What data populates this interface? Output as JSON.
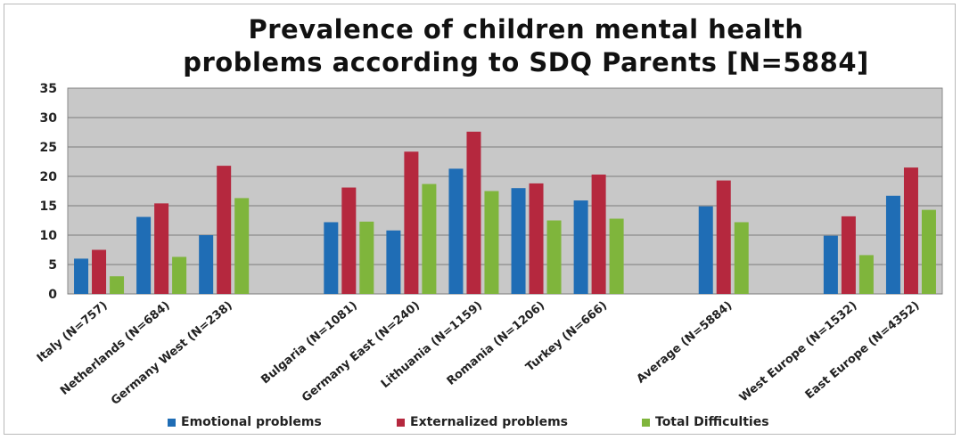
{
  "chart_data": {
    "type": "bar",
    "title_lines": [
      "Prevalence of children mental health",
      "problems according to SDQ  Parents [N=5884]"
    ],
    "categories": [
      "Italy (N=757)",
      "Netherlands (N=684)",
      "Germany West (N=238)",
      "",
      "Bulgaria (N=1081)",
      "Germany East (N=240)",
      "Lithuania (N=1159)",
      "Romania (N=1206)",
      "Turkey (N=666)",
      "",
      "Average (N=5884)",
      "",
      "West Europe (N=1532)",
      "East Europe (N=4352)"
    ],
    "series": [
      {
        "name": "Emotional problems",
        "color": "#1f6db5",
        "values": [
          6.0,
          13.1,
          10.0,
          null,
          12.2,
          10.8,
          21.3,
          18.0,
          15.9,
          null,
          14.9,
          null,
          9.9,
          16.7
        ]
      },
      {
        "name": "Externalized problems",
        "color": "#b5283e",
        "values": [
          7.5,
          15.4,
          21.8,
          null,
          18.1,
          24.2,
          27.6,
          18.8,
          20.3,
          null,
          19.3,
          null,
          13.2,
          21.5
        ]
      },
      {
        "name": "Total Difficulties",
        "color": "#7fb53c",
        "values": [
          3.0,
          6.3,
          16.3,
          null,
          12.3,
          18.7,
          17.5,
          12.5,
          12.8,
          null,
          12.2,
          null,
          6.6,
          14.3
        ]
      }
    ],
    "ylim": [
      0,
      35
    ],
    "yticks": [
      0,
      5,
      10,
      15,
      20,
      25,
      30,
      35
    ],
    "xlabel": "",
    "ylabel": "",
    "grid": true,
    "plot_background": "#c8c8c8",
    "legend_position": "bottom"
  }
}
